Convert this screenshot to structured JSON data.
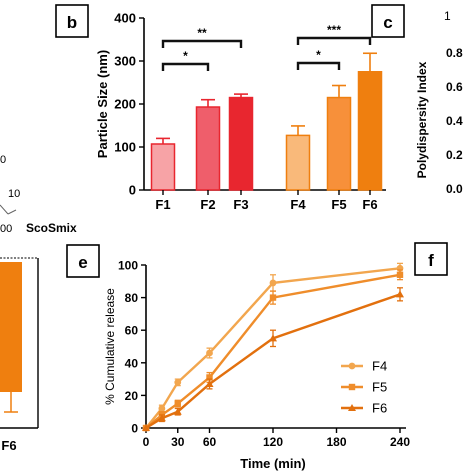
{
  "panels": {
    "b": "b",
    "c": "c",
    "e": "e",
    "f": "f"
  },
  "fragments": {
    "left_ternary_ticks": [
      "10",
      "00",
      "0"
    ],
    "left_axis_label": "ScoSmix",
    "bottom_left_tick": "F6",
    "right_axis_label": "Polydispersity Index",
    "right_ticks": [
      "0.0",
      "0.2",
      "0.4",
      "0.6",
      "0.8",
      "1.0"
    ],
    "right_top_tick": "1"
  },
  "colors": {
    "F1": "#f7a3a6",
    "F2": "#ef5e6b",
    "F3": "#e8262f",
    "F4": "#f9b97a",
    "F5": "#f7903a",
    "F6": "#ef7f0f",
    "F6_line": "#e2700e",
    "F5_line": "#ef8d2b",
    "F4_line": "#f2a64e",
    "bracket": "#111111"
  },
  "chart_data": [
    {
      "panel": "b",
      "type": "bar",
      "title": "",
      "xlabel": "",
      "ylabel": "Particle Size (nm)",
      "ylim": [
        0,
        400
      ],
      "yticks": [
        0,
        100,
        200,
        300,
        400
      ],
      "categories": [
        "F1",
        "F2",
        "F3",
        "F4",
        "F5",
        "F6"
      ],
      "values": [
        107,
        193,
        215,
        127,
        215,
        275
      ],
      "errors": [
        13,
        17,
        8,
        22,
        28,
        43
      ],
      "significance": [
        {
          "from": "F1",
          "to": "F2",
          "label": "*"
        },
        {
          "from": "F1",
          "to": "F3",
          "label": "**"
        },
        {
          "from": "F4",
          "to": "F5",
          "label": "*"
        },
        {
          "from": "F4",
          "to": "F6",
          "label": "***"
        }
      ],
      "grid": false
    },
    {
      "panel": "f",
      "type": "line",
      "title": "",
      "xlabel": "Time (min)",
      "ylabel": "% Cumulative release",
      "xlim": [
        0,
        240
      ],
      "ylim": [
        0,
        100
      ],
      "xticks": [
        0,
        30,
        60,
        120,
        180,
        240
      ],
      "yticks": [
        0,
        20,
        40,
        60,
        80,
        100
      ],
      "legend_position": "lower-right",
      "x": [
        0,
        15,
        30,
        60,
        120,
        240
      ],
      "series": [
        {
          "name": "F4",
          "marker": "circle",
          "values": [
            0,
            12,
            28,
            46,
            89,
            98
          ],
          "errors": [
            0,
            2,
            2,
            3,
            5,
            3
          ]
        },
        {
          "name": "F5",
          "marker": "square",
          "values": [
            0,
            8,
            15,
            31,
            80,
            94
          ],
          "errors": [
            0,
            2,
            2,
            3,
            4,
            3
          ]
        },
        {
          "name": "F6",
          "marker": "triangle",
          "values": [
            0,
            6,
            10,
            27,
            55,
            82
          ],
          "errors": [
            0,
            2,
            2,
            3,
            5,
            4
          ]
        }
      ],
      "grid": false
    }
  ]
}
